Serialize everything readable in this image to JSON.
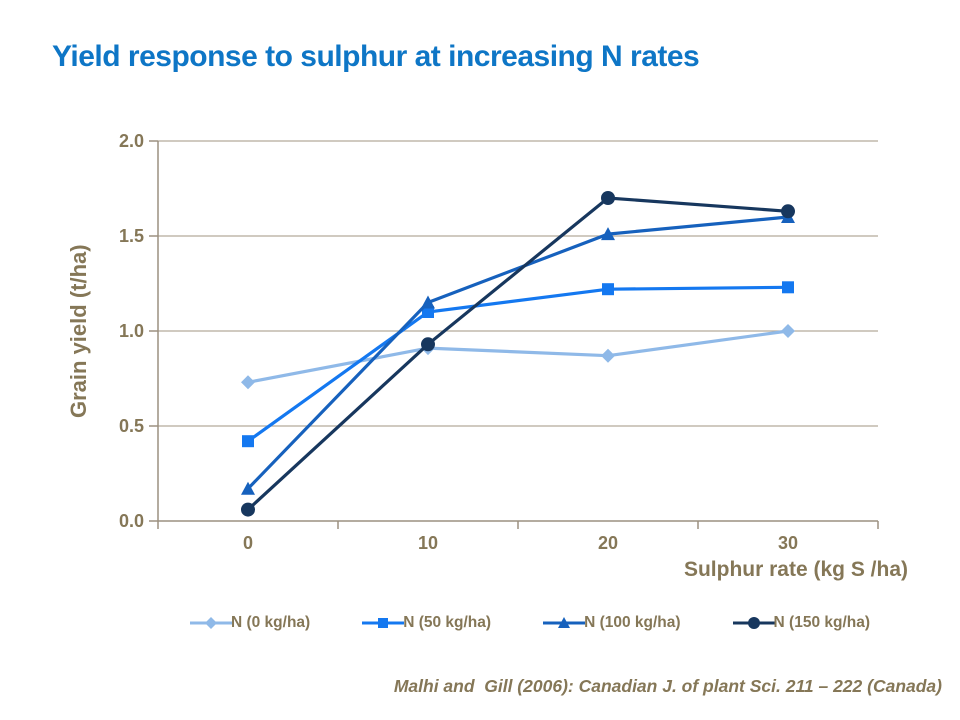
{
  "title": "Yield response to sulphur at increasing N rates",
  "citation": "Malhi and  Gill (2006): Canadian J. of plant Sci. 211 – 222 (Canada)",
  "colors": {
    "title": "#0e76c6",
    "label_text": "#857757",
    "axis": "#9c9080",
    "gridline": "#b4aa9b"
  },
  "chart_data": {
    "type": "line",
    "categories": [
      "0",
      "10",
      "20",
      "30"
    ],
    "series": [
      {
        "name": "N (0 kg/ha)",
        "marker": "diamond",
        "color": "#8fb9e8",
        "values": [
          0.73,
          0.91,
          0.87,
          1.0
        ]
      },
      {
        "name": "N (50 kg/ha)",
        "marker": "square",
        "color": "#1478f0",
        "values": [
          0.42,
          1.1,
          1.22,
          1.23
        ]
      },
      {
        "name": "N (100 kg/ha)",
        "marker": "triangle",
        "color": "#1661bd",
        "values": [
          0.17,
          1.15,
          1.51,
          1.6
        ]
      },
      {
        "name": "N (150 kg/ha)",
        "marker": "circle",
        "color": "#17375e",
        "values": [
          0.06,
          0.93,
          1.7,
          1.63
        ]
      }
    ],
    "xlabel": "Sulphur rate (kg S /ha)",
    "ylabel": "Grain yield (t/ha)",
    "ylim": [
      0.0,
      2.0
    ],
    "y_ticks": [
      "0.0",
      "0.5",
      "1.0",
      "1.5",
      "2.0"
    ],
    "grid": "horizontal",
    "legend_position": "bottom"
  }
}
